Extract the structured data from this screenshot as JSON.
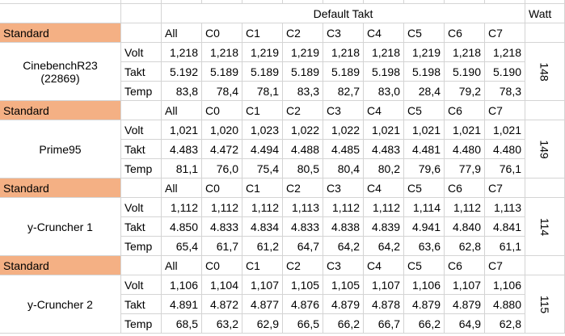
{
  "title": "Default Takt",
  "watt_header": "Watt",
  "blocks": [
    {
      "label": "Standard",
      "name": [
        "CinebenchR23",
        "(22869)"
      ],
      "columns": [
        "All",
        "C0",
        "C1",
        "C2",
        "C3",
        "C4",
        "C5",
        "C6",
        "C7"
      ],
      "rows": [
        {
          "label": "Volt",
          "values": [
            "1,218",
            "1,218",
            "1,219",
            "1,219",
            "1,218",
            "1,218",
            "1,219",
            "1,218",
            "1,218"
          ]
        },
        {
          "label": "Takt",
          "values": [
            "5.192",
            "5.189",
            "5.189",
            "5.189",
            "5.189",
            "5.198",
            "5.198",
            "5.190",
            "5.190"
          ]
        },
        {
          "label": "Temp",
          "values": [
            "83,8",
            "78,4",
            "78,1",
            "83,3",
            "82,7",
            "83,0",
            "28,4",
            "79,2",
            "78,3"
          ]
        }
      ],
      "watt": "148"
    },
    {
      "label": "Standard",
      "name": [
        "Prime95"
      ],
      "columns": [
        "All",
        "C0",
        "C1",
        "C2",
        "C3",
        "C4",
        "C5",
        "C6",
        "C7"
      ],
      "rows": [
        {
          "label": "Volt",
          "values": [
            "1,021",
            "1,020",
            "1,023",
            "1,022",
            "1,022",
            "1,021",
            "1,021",
            "1,021",
            "1,021"
          ]
        },
        {
          "label": "Takt",
          "values": [
            "4.483",
            "4.472",
            "4.494",
            "4.488",
            "4.485",
            "4.483",
            "4.481",
            "4.480",
            "4.480"
          ]
        },
        {
          "label": "Temp",
          "values": [
            "81,1",
            "76,0",
            "75,4",
            "80,5",
            "80,4",
            "80,2",
            "79,6",
            "77,9",
            "76,1"
          ]
        }
      ],
      "watt": "149"
    },
    {
      "label": "Standard",
      "name": [
        "y-Cruncher 1"
      ],
      "columns": [
        "All",
        "C0",
        "C1",
        "C2",
        "C3",
        "C4",
        "C5",
        "C6",
        "C7"
      ],
      "rows": [
        {
          "label": "Volt",
          "values": [
            "1,112",
            "1,112",
            "1,112",
            "1,113",
            "1,112",
            "1,112",
            "1,114",
            "1,112",
            "1,113"
          ]
        },
        {
          "label": "Takt",
          "values": [
            "4.850",
            "4.833",
            "4.834",
            "4.833",
            "4.838",
            "4.839",
            "4.941",
            "4.840",
            "4.841"
          ]
        },
        {
          "label": "Temp",
          "values": [
            "65,4",
            "61,7",
            "61,2",
            "64,7",
            "64,2",
            "64,2",
            "63,6",
            "62,8",
            "61,1"
          ]
        }
      ],
      "watt": "114"
    },
    {
      "label": "Standard",
      "name": [
        "y-Cruncher 2"
      ],
      "columns": [
        "All",
        "C0",
        "C1",
        "C2",
        "C3",
        "C4",
        "C5",
        "C6",
        "C7"
      ],
      "rows": [
        {
          "label": "Volt",
          "values": [
            "1,106",
            "1,104",
            "1,107",
            "1,105",
            "1,105",
            "1,107",
            "1,106",
            "1,107",
            "1,106"
          ]
        },
        {
          "label": "Takt",
          "values": [
            "4.891",
            "4.872",
            "4.877",
            "4.876",
            "4.879",
            "4.878",
            "4.879",
            "4.879",
            "4.880"
          ]
        },
        {
          "label": "Temp",
          "values": [
            "68,5",
            "63,2",
            "62,9",
            "66,5",
            "66,2",
            "66,7",
            "66,2",
            "64,9",
            "62,8"
          ]
        }
      ],
      "watt": "115"
    }
  ]
}
